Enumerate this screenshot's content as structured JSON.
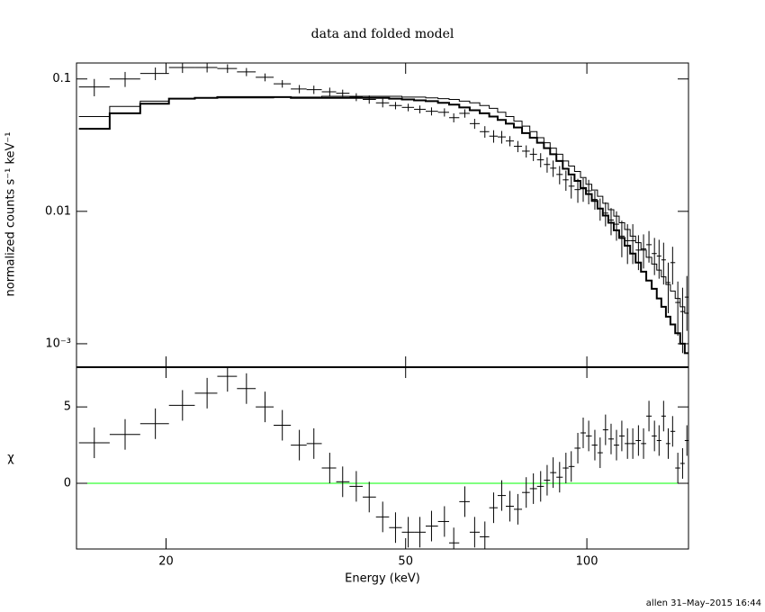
{
  "chart_data": [
    {
      "type": "spectrum",
      "title": "data and folded model",
      "ylabel": "normalized counts s⁻¹ keV⁻¹",
      "xlog": true,
      "ylog": true,
      "xlim": [
        14.2,
        147.5
      ],
      "ylim": [
        0.000665,
        0.132
      ],
      "yticks": [
        0.1,
        0.01,
        {
          "value": 0.001,
          "label": "10⁻³"
        }
      ],
      "x": [
        15.2,
        17.1,
        19.2,
        21.3,
        23.4,
        25.3,
        27.2,
        29.2,
        31.2,
        33.3,
        35.2,
        37.4,
        39.3,
        41.4,
        43.5,
        45.8,
        48.1,
        50.5,
        52.8,
        55.2,
        58.0,
        60.1,
        62.7,
        65.1,
        67.7,
        70.0,
        72.2,
        74.5,
        76.8,
        79.3,
        81.5,
        83.8,
        85.9,
        87.9,
        90.1,
        92.3,
        94.2,
        96.6,
        98.6,
        100.7,
        103.1,
        105.2,
        107.4,
        109.7,
        112.0,
        114.3,
        116.8,
        119.2,
        121.8,
        124.2,
        126.8,
        129.5,
        131.8,
        134.1,
        136.5,
        138.8,
        141.6,
        144.2,
        146.6
      ],
      "series": [
        {
          "style": "crosses",
          "color": "#000000",
          "values": [
            0.087,
            0.1,
            0.11,
            0.122,
            0.122,
            0.12,
            0.113,
            0.103,
            0.092,
            0.084,
            0.083,
            0.08,
            0.078,
            0.073,
            0.07,
            0.066,
            0.063,
            0.061,
            0.059,
            0.057,
            0.056,
            0.051,
            0.055,
            0.046,
            0.04,
            0.037,
            0.0365,
            0.034,
            0.031,
            0.0285,
            0.027,
            0.0245,
            0.0226,
            0.0212,
            0.019,
            0.0173,
            0.0155,
            0.0146,
            0.0148,
            0.0143,
            0.0123,
            0.0105,
            0.0097,
            0.0086,
            0.008,
            0.0065,
            0.006,
            0.006,
            0.0051,
            0.0052,
            0.0056,
            0.0048,
            0.0046,
            0.0043,
            0.0029,
            0.0041,
            0.00205,
            0.00175,
            0.00225
          ],
          "yerr": [
            0.013,
            0.013,
            0.012,
            0.011,
            0.01,
            0.009,
            0.008,
            0.007,
            0.006,
            0.006,
            0.006,
            0.006,
            0.005,
            0.005,
            0.005,
            0.005,
            0.004,
            0.004,
            0.004,
            0.004,
            0.004,
            0.004,
            0.004,
            0.004,
            0.004,
            0.004,
            0.004,
            0.003,
            0.003,
            0.003,
            0.003,
            0.003,
            0.003,
            0.003,
            0.003,
            0.003,
            0.003,
            0.003,
            0.003,
            0.003,
            0.002,
            0.002,
            0.002,
            0.002,
            0.002,
            0.002,
            0.002,
            0.002,
            0.0015,
            0.0015,
            0.0015,
            0.0015,
            0.0015,
            0.0015,
            0.0012,
            0.0013,
            0.0009,
            0.0009,
            0.001
          ]
        },
        {
          "style": "step",
          "color": "#000000",
          "width": 2,
          "values": [
            0.042,
            0.055,
            0.065,
            0.071,
            0.072,
            0.073,
            0.073,
            0.073,
            0.073,
            0.072,
            0.072,
            0.072,
            0.072,
            0.072,
            0.072,
            0.072,
            0.071,
            0.07,
            0.069,
            0.068,
            0.066,
            0.064,
            0.061,
            0.058,
            0.055,
            0.052,
            0.049,
            0.046,
            0.043,
            0.039,
            0.036,
            0.033,
            0.03,
            0.027,
            0.024,
            0.021,
            0.019,
            0.017,
            0.015,
            0.0135,
            0.012,
            0.0105,
            0.0093,
            0.0082,
            0.0072,
            0.0063,
            0.0055,
            0.0048,
            0.0041,
            0.0035,
            0.003,
            0.0026,
            0.0022,
            0.0019,
            0.0016,
            0.0014,
            0.0012,
            0.001,
            0.00085
          ]
        },
        {
          "style": "step",
          "color": "#000000",
          "width": 1,
          "values": [
            0.052,
            0.062,
            0.068,
            0.071,
            0.072,
            0.072,
            0.072,
            0.072,
            0.073,
            0.073,
            0.073,
            0.074,
            0.074,
            0.074,
            0.074,
            0.074,
            0.074,
            0.073,
            0.073,
            0.072,
            0.071,
            0.07,
            0.068,
            0.066,
            0.063,
            0.06,
            0.056,
            0.052,
            0.048,
            0.044,
            0.04,
            0.036,
            0.033,
            0.03,
            0.027,
            0.024,
            0.022,
            0.02,
            0.018,
            0.016,
            0.0145,
            0.013,
            0.0115,
            0.0103,
            0.0092,
            0.0082,
            0.0073,
            0.0065,
            0.0058,
            0.0051,
            0.0045,
            0.004,
            0.0036,
            0.0032,
            0.0028,
            0.0025,
            0.0022,
            0.0019,
            0.0017
          ]
        }
      ]
    },
    {
      "type": "residuals",
      "xlabel": "Energy (keV)",
      "ylabel": "χ",
      "xlog": true,
      "xlim": [
        14.2,
        147.5
      ],
      "xticks": [
        20,
        50,
        100
      ],
      "ylim": [
        -4.3,
        7.6
      ],
      "yticks": [
        0,
        5
      ],
      "zero_line": 0,
      "zero_color": "#00ff00",
      "color": "#000000",
      "yerr": 1,
      "values": [
        2.65,
        3.2,
        3.9,
        5.1,
        5.9,
        7.0,
        6.2,
        5.0,
        3.8,
        2.5,
        2.6,
        1.0,
        0.1,
        -0.2,
        -0.9,
        -2.2,
        -2.9,
        -3.2,
        -3.2,
        -2.8,
        -2.5,
        -3.9,
        -1.2,
        -3.2,
        -3.5,
        -1.6,
        -0.8,
        -1.5,
        -1.7,
        -0.6,
        -0.35,
        -0.2,
        0.2,
        0.7,
        0.4,
        1.0,
        1.1,
        2.3,
        3.3,
        3.1,
        2.5,
        2.0,
        3.5,
        2.9,
        2.5,
        3.1,
        2.6,
        2.6,
        2.8,
        2.6,
        4.4,
        3.1,
        2.8,
        4.4,
        2.6,
        3.4,
        1.0,
        1.3,
        2.8
      ]
    }
  ],
  "footer": "allen 31–May–2015 16:44"
}
